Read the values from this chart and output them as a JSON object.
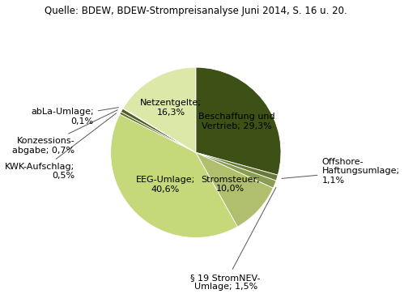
{
  "title": "Quelle: BDEW, BDEW-Strompreisanalyse Juni 2014, S. 16 u. 20.",
  "slices": [
    {
      "label": "Beschaffung und\nVertrieb; 29,3%",
      "value": 29.3,
      "color": "#3d5016"
    },
    {
      "label": "Offshore-\nHaftungsumlage;\n1,1%",
      "value": 1.1,
      "color": "#6b7a3a"
    },
    {
      "label": "§ 19 StromNEV-\nUmlage; 1,5%",
      "value": 1.5,
      "color": "#8a9e52"
    },
    {
      "label": "Stromsteuer;\n10,0%",
      "value": 10.0,
      "color": "#b0bf6e"
    },
    {
      "label": "EEG-Umlage;\n40,6%",
      "value": 40.6,
      "color": "#c5d87a"
    },
    {
      "label": "KWK-Aufschlag;\n0,5%",
      "value": 0.5,
      "color": "#5c6b2a"
    },
    {
      "label": "Konzessions-\nabgabe; 0,7%",
      "value": 0.7,
      "color": "#4f5e24"
    },
    {
      "label": "abLa-Umlage;\n0,1%",
      "value": 0.1,
      "color": "#47551e"
    },
    {
      "label": "Netzentgelte;\n16,3%",
      "value": 16.3,
      "color": "#dce8a8"
    }
  ],
  "background_color": "#ffffff",
  "title_fontsize": 8.5,
  "label_fontsize": 8,
  "figsize": [
    4.99,
    3.68
  ],
  "dpi": 100
}
